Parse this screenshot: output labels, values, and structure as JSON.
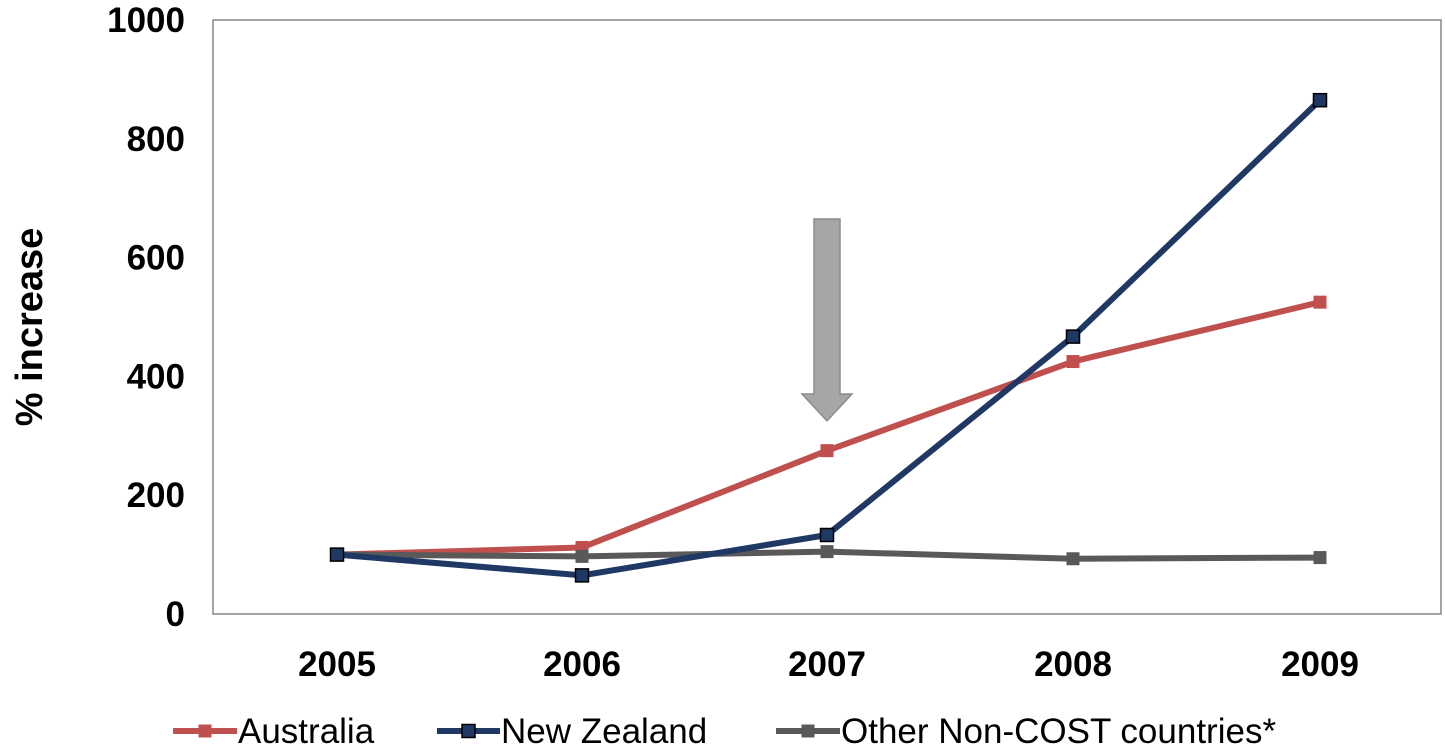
{
  "chart_data": {
    "type": "line",
    "title": "",
    "xlabel": "",
    "ylabel": "% increase",
    "x": [
      "2005",
      "2006",
      "2007",
      "2008",
      "2009"
    ],
    "ylim": [
      0,
      1000
    ],
    "yticks": [
      0,
      200,
      400,
      600,
      800,
      1000
    ],
    "yticklabels": [
      "0",
      "200",
      "400",
      "600",
      "800",
      "1000"
    ],
    "grid": false,
    "legend_position": "bottom",
    "series": [
      {
        "name": "Australia",
        "values": [
          100,
          112,
          275,
          425,
          525
        ],
        "color": "#c0504d",
        "marker": "square"
      },
      {
        "name": "New Zealand",
        "values": [
          100,
          65,
          133,
          467,
          865
        ],
        "color": "#1f3864",
        "marker": "square"
      },
      {
        "name": "Other Non-COST countries*",
        "values": [
          100,
          97,
          105,
          93,
          95
        ],
        "color": "#595959",
        "marker": "square"
      }
    ],
    "annotations": [
      {
        "type": "down-arrow",
        "x": "2007",
        "y_top": 665,
        "y_tip": 325,
        "color": "#a6a6a6"
      }
    ]
  }
}
